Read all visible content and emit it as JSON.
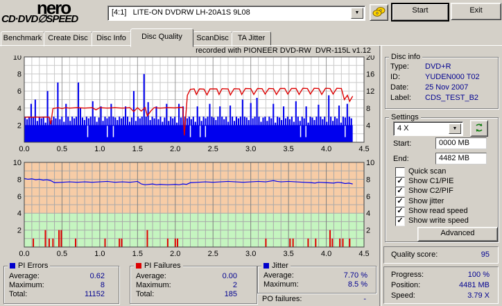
{
  "header": {
    "logo_line1": "nero",
    "logo_line2": "CD·DVD∅SPEED",
    "drive_select": "[4:1]   LITE-ON DVDRW LH-20A1S 9L08",
    "start_button": "Start",
    "exit_button": "Exit"
  },
  "tabs": [
    {
      "label": "Benchmark",
      "active": false
    },
    {
      "label": "Create Disc",
      "active": false
    },
    {
      "label": "Disc Info",
      "active": false
    },
    {
      "label": "Disc Quality",
      "active": true
    },
    {
      "label": "ScanDisc",
      "active": false
    },
    {
      "label": "TA Jitter",
      "active": false
    }
  ],
  "chart_data": [
    {
      "type": "bar",
      "name": "pi-errors-and-write-speed",
      "title": "recorded with PIONEER DVD-RW  DVR-115L v1.12",
      "x_axis": {
        "min": 0,
        "max": 4.5,
        "ticks": [
          0,
          0.5,
          1,
          1.5,
          2,
          2.5,
          3,
          3.5,
          4,
          4.5
        ]
      },
      "y_left": {
        "min": 0,
        "max": 10,
        "ticks": [
          2,
          4,
          6,
          8,
          10
        ],
        "top_label": "10"
      },
      "y_right": {
        "min": 0,
        "max": 20,
        "ticks": [
          4,
          8,
          12,
          16,
          20
        ],
        "top_label": "20"
      },
      "data_end_x": 4.35,
      "base_fill_level": 2,
      "base_gaps": [
        0.84,
        1.1,
        1.18,
        2.2,
        2.33,
        2.4,
        3.66,
        3.73,
        4.25
      ],
      "pi_error_bars": [
        3,
        2.7,
        3,
        4.5,
        2.9,
        5,
        2.5,
        3,
        2.8,
        3,
        2.3,
        6,
        2.9,
        2.6,
        3,
        2.8,
        7,
        2.7,
        3,
        2.4,
        4.5,
        3,
        2.5,
        3,
        2.8,
        3,
        7,
        4,
        2.9,
        2.6,
        3,
        2.8,
        3,
        4.8,
        3,
        2.4,
        2.9,
        4.2,
        2.5,
        3,
        2.8,
        3,
        4.5,
        3,
        2.9,
        2.6,
        3,
        2.8,
        3,
        4.2,
        3,
        2.4,
        2.9,
        6,
        2.5,
        3,
        2.8,
        3,
        8,
        3,
        4.7,
        2.6,
        3,
        2.8,
        4.2,
        2.7,
        3,
        2.4,
        2.9,
        4.5,
        2.5,
        3,
        2.8,
        3,
        2.3,
        4.5,
        2.9,
        4.2,
        3,
        2.8,
        3,
        2.7,
        3,
        2.4,
        4.2,
        3,
        2.5,
        3,
        2.8,
        3,
        4.5,
        3,
        2.9,
        2.6,
        3,
        4.2,
        3,
        2.7,
        3,
        2.4,
        4.3,
        3,
        2.5,
        3,
        2.8,
        3,
        5,
        3,
        2.9,
        2.6,
        4.6,
        2.8,
        3,
        5.2,
        3,
        2.4,
        2.9,
        3,
        2.5,
        3,
        2.8,
        4.5,
        2.3,
        3,
        2.9,
        2.6,
        4.2,
        2.8,
        3,
        2.7,
        3,
        2.4,
        4.8,
        3,
        2.5,
        3,
        2.8,
        4.2,
        2.3,
        3,
        2.9,
        2.6,
        3,
        4.4,
        3,
        2.7,
        3,
        2.4,
        5.5,
        3,
        2.5,
        3,
        2.8,
        4.3,
        2.3,
        3,
        2.9,
        4.5,
        3,
        2.8
      ],
      "write_speed": [
        [
          0,
          5.8
        ],
        [
          0.05,
          5.9
        ],
        [
          0.1,
          5.85
        ],
        [
          0.15,
          5.9
        ],
        [
          0.2,
          5.85
        ],
        [
          0.3,
          5.9
        ],
        [
          0.33,
          5.85
        ],
        [
          0.35,
          4.2
        ],
        [
          0.38,
          7.9
        ],
        [
          0.45,
          8.1
        ],
        [
          0.5,
          7.9
        ],
        [
          0.55,
          8.1
        ],
        [
          0.6,
          8.0
        ],
        [
          0.7,
          8.1
        ],
        [
          0.8,
          8.0
        ],
        [
          0.9,
          8.1
        ],
        [
          0.95,
          7.6
        ],
        [
          1.0,
          8.1
        ],
        [
          1.1,
          8.0
        ],
        [
          1.2,
          8.1
        ],
        [
          1.3,
          8.0
        ],
        [
          1.4,
          8.1
        ],
        [
          1.45,
          7.2
        ],
        [
          1.5,
          8.1
        ],
        [
          1.55,
          7.3
        ],
        [
          1.6,
          8.15
        ],
        [
          1.63,
          6.2
        ],
        [
          1.68,
          7.4
        ],
        [
          1.72,
          8.1
        ],
        [
          1.8,
          8.0
        ],
        [
          1.9,
          8.1
        ],
        [
          2.0,
          8.05
        ],
        [
          2.05,
          8.15
        ],
        [
          2.1,
          8.2
        ],
        [
          2.12,
          1.6
        ],
        [
          2.16,
          11.0
        ],
        [
          2.2,
          12.4
        ],
        [
          2.25,
          12.5
        ],
        [
          2.28,
          11.2
        ],
        [
          2.32,
          12.5
        ],
        [
          2.38,
          12.45
        ],
        [
          2.42,
          11.1
        ],
        [
          2.46,
          12.5
        ],
        [
          2.55,
          12.5
        ],
        [
          2.58,
          11.2
        ],
        [
          2.62,
          12.55
        ],
        [
          2.7,
          12.5
        ],
        [
          2.73,
          11.1
        ],
        [
          2.78,
          12.55
        ],
        [
          2.85,
          12.5
        ],
        [
          2.88,
          11.2
        ],
        [
          2.93,
          12.6
        ],
        [
          3.0,
          12.55
        ],
        [
          3.04,
          11.2
        ],
        [
          3.09,
          12.6
        ],
        [
          3.15,
          12.55
        ],
        [
          3.19,
          11.3
        ],
        [
          3.24,
          12.6
        ],
        [
          3.3,
          12.55
        ],
        [
          3.34,
          11.2
        ],
        [
          3.39,
          12.6
        ],
        [
          3.45,
          12.6
        ],
        [
          3.49,
          11.3
        ],
        [
          3.54,
          12.6
        ],
        [
          3.6,
          12.6
        ],
        [
          3.64,
          11.2
        ],
        [
          3.69,
          12.65
        ],
        [
          3.75,
          12.6
        ],
        [
          3.79,
          11.3
        ],
        [
          3.84,
          12.65
        ],
        [
          3.9,
          12.6
        ],
        [
          3.94,
          11.2
        ],
        [
          3.99,
          12.65
        ],
        [
          4.05,
          12.6
        ],
        [
          4.09,
          11.3
        ],
        [
          4.14,
          12.65
        ],
        [
          4.2,
          12.6
        ],
        [
          4.24,
          10.0
        ],
        [
          4.28,
          11.0
        ],
        [
          4.31,
          9.6
        ],
        [
          4.35,
          10.8
        ]
      ],
      "colors": {
        "bars": "#0000EE",
        "speed_line": "#DE0202",
        "grid": "#C9C9C9",
        "grid_major": "#989898",
        "plot_bg": "#FFFFFF"
      }
    },
    {
      "type": "line",
      "name": "jitter-and-pi-failures",
      "x_axis": {
        "min": 0,
        "max": 4.5,
        "ticks": [
          0,
          0.5,
          1,
          1.5,
          2,
          2.5,
          3,
          3.5,
          4,
          4.5
        ]
      },
      "y_axis": {
        "min": 0,
        "max": 10,
        "ticks": [
          2,
          4,
          6,
          8,
          10
        ],
        "top_label": "10"
      },
      "zones": [
        {
          "from": 4,
          "to": 10,
          "color": "#F7CCA6"
        },
        {
          "from": 0,
          "to": 4,
          "color": "#C5F5C0"
        }
      ],
      "jitter_line": [
        [
          0,
          8.1
        ],
        [
          0.05,
          8.0
        ],
        [
          0.1,
          8.05
        ],
        [
          0.15,
          7.95
        ],
        [
          0.2,
          8.0
        ],
        [
          0.25,
          7.9
        ],
        [
          0.3,
          7.95
        ],
        [
          0.35,
          7.85
        ],
        [
          0.4,
          7.6
        ],
        [
          0.5,
          7.65
        ],
        [
          0.6,
          7.7
        ],
        [
          0.7,
          7.65
        ],
        [
          0.8,
          7.7
        ],
        [
          0.9,
          7.65
        ],
        [
          1.0,
          7.7
        ],
        [
          1.1,
          7.75
        ],
        [
          1.2,
          7.65
        ],
        [
          1.3,
          7.7
        ],
        [
          1.4,
          7.65
        ],
        [
          1.5,
          7.75
        ],
        [
          1.55,
          7.45
        ],
        [
          1.6,
          7.35
        ],
        [
          1.7,
          7.45
        ],
        [
          1.75,
          7.35
        ],
        [
          1.8,
          7.4
        ],
        [
          1.9,
          7.35
        ],
        [
          2.0,
          7.4
        ],
        [
          2.05,
          7.35
        ],
        [
          2.1,
          7.45
        ],
        [
          2.15,
          7.4
        ],
        [
          2.2,
          7.6
        ],
        [
          2.3,
          7.65
        ],
        [
          2.4,
          7.7
        ],
        [
          2.5,
          7.65
        ],
        [
          2.6,
          7.7
        ],
        [
          2.7,
          7.75
        ],
        [
          2.8,
          7.7
        ],
        [
          2.9,
          7.65
        ],
        [
          3.0,
          7.7
        ],
        [
          3.1,
          7.75
        ],
        [
          3.2,
          7.7
        ],
        [
          3.3,
          7.85
        ],
        [
          3.35,
          7.75
        ],
        [
          3.4,
          7.7
        ],
        [
          3.5,
          7.75
        ],
        [
          3.6,
          7.7
        ],
        [
          3.7,
          7.65
        ],
        [
          3.8,
          7.6
        ],
        [
          3.85,
          7.55
        ],
        [
          3.9,
          7.65
        ],
        [
          4.0,
          7.6
        ],
        [
          4.1,
          7.55
        ],
        [
          4.15,
          7.65
        ],
        [
          4.2,
          7.6
        ],
        [
          4.25,
          7.5
        ],
        [
          4.3,
          7.55
        ],
        [
          4.35,
          7.45
        ]
      ],
      "pi_failure_bars": [
        [
          0.12,
          1
        ],
        [
          0.28,
          2
        ],
        [
          0.33,
          1
        ],
        [
          0.38,
          1
        ],
        [
          0.46,
          2
        ],
        [
          0.49,
          2
        ],
        [
          0.68,
          1
        ],
        [
          1.07,
          1
        ],
        [
          1.26,
          1
        ],
        [
          1.29,
          1
        ],
        [
          1.63,
          2
        ],
        [
          1.9,
          1
        ],
        [
          2.0,
          1
        ],
        [
          2.03,
          1
        ],
        [
          3.2,
          1
        ],
        [
          3.52,
          1
        ],
        [
          3.56,
          1
        ],
        [
          3.76,
          1
        ],
        [
          3.86,
          1
        ],
        [
          4.05,
          2
        ],
        [
          4.08,
          1
        ],
        [
          4.18,
          1
        ],
        [
          4.22,
          1
        ],
        [
          4.31,
          1
        ]
      ],
      "colors": {
        "line": "#0000EE",
        "bars": "#E00000",
        "grid": "#A9A9A9",
        "grid_major": "#808080"
      }
    }
  ],
  "stats": {
    "pi_errors": {
      "legend": "PI Errors",
      "color": "#0000CC",
      "rows": [
        [
          "Average:",
          "0.62"
        ],
        [
          "Maximum:",
          "8"
        ],
        [
          "Total:",
          "11152"
        ]
      ]
    },
    "pi_failures": {
      "legend": "PI Failures",
      "color": "#DD0000",
      "rows": [
        [
          "Average:",
          "0.00"
        ],
        [
          "Maximum:",
          "2"
        ],
        [
          "Total:",
          "185"
        ]
      ]
    },
    "jitter": {
      "legend": "Jitter",
      "color": "#0000CC",
      "rows": [
        [
          "Average:",
          "7.70 %"
        ],
        [
          "Maximum:",
          "8.5 %"
        ]
      ]
    },
    "po_failures": {
      "label": "PO failures:",
      "value": "-"
    }
  },
  "disc_info": {
    "legend": "Disc info",
    "rows": [
      [
        "Type:",
        "DVD+R"
      ],
      [
        "ID:",
        "YUDEN000 T02"
      ],
      [
        "Date:",
        "25 Nov 2007"
      ],
      [
        "Label:",
        "CDS_TEST_B2"
      ]
    ]
  },
  "settings": {
    "legend": "Settings",
    "speed_value": "4 X",
    "start_label": "Start:",
    "start_value": "0000 MB",
    "end_label": "End:",
    "end_value": "4482 MB",
    "checkboxes": [
      {
        "label": "Quick scan",
        "checked": false
      },
      {
        "label": "Show C1/PIE",
        "checked": true
      },
      {
        "label": "Show C2/PIF",
        "checked": true
      },
      {
        "label": "Show jitter",
        "checked": true
      },
      {
        "label": "Show read speed",
        "checked": true
      },
      {
        "label": "Show write speed",
        "checked": true
      }
    ],
    "advanced_button": "Advanced"
  },
  "quality": {
    "label": "Quality score:",
    "value": "95"
  },
  "progress": {
    "rows": [
      [
        "Progress:",
        "100 %"
      ],
      [
        "Position:",
        "4481 MB"
      ],
      [
        "Speed:",
        "3.79 X"
      ]
    ]
  }
}
